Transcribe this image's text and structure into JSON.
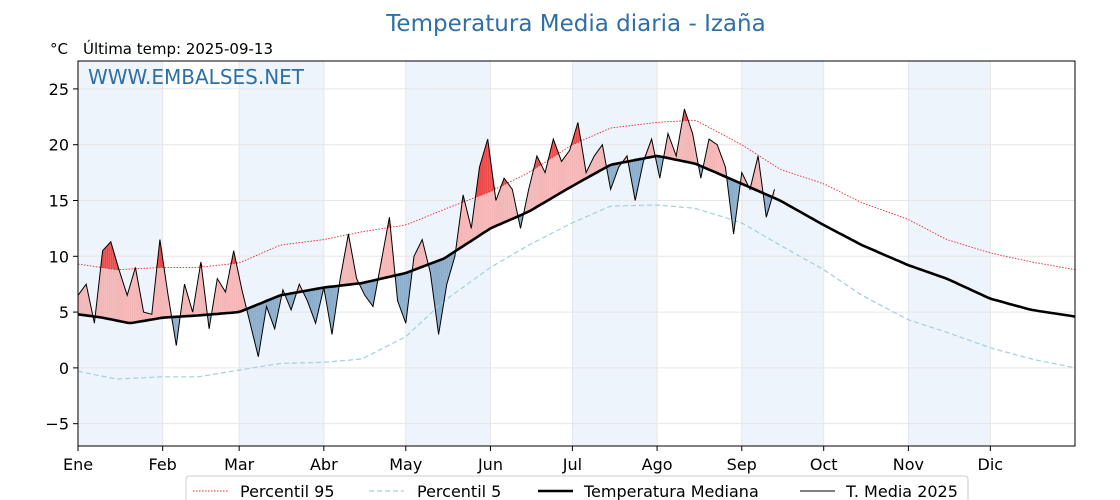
{
  "chart_data": {
    "type": "line",
    "title": "Temperatura Media diaria - Izaña",
    "unit": "°C",
    "last_temp": "Última temp: 2025-09-13",
    "watermark": "WWW.EMBALSES.NET",
    "ylim": [
      -7,
      27.5
    ],
    "xlim": [
      1,
      366
    ],
    "yticks": [
      -5,
      0,
      5,
      10,
      15,
      20,
      25
    ],
    "months": [
      {
        "label": "Ene",
        "day": 1
      },
      {
        "label": "Feb",
        "day": 32
      },
      {
        "label": "Mar",
        "day": 60
      },
      {
        "label": "Abr",
        "day": 91
      },
      {
        "label": "May",
        "day": 121
      },
      {
        "label": "Jun",
        "day": 152
      },
      {
        "label": "Jul",
        "day": 182
      },
      {
        "label": "Ago",
        "day": 213
      },
      {
        "label": "Sep",
        "day": 244
      },
      {
        "label": "Oct",
        "day": 274
      },
      {
        "label": "Nov",
        "day": 305
      },
      {
        "label": "Dic",
        "day": 335
      }
    ],
    "grid": true,
    "legend_position": "bottom",
    "colors": {
      "p95": "#e8262a",
      "p5": "#9fd0e0",
      "median": "#000000",
      "media2025": "#000000",
      "above_fill": "#f4b6b6",
      "above_p95_fill": "#ea4a4a",
      "below_fill": "#8aadcb",
      "band": "#eef4fb",
      "title": "#2e6fa5"
    },
    "series": [
      {
        "name": "Percentil 95",
        "style": "dotted",
        "x": [
          1,
          15,
          32,
          45,
          60,
          75,
          91,
          105,
          121,
          135,
          152,
          166,
          182,
          196,
          213,
          227,
          244,
          258,
          274,
          288,
          305,
          319,
          335,
          350,
          366
        ],
        "y": [
          9.3,
          8.8,
          9.0,
          9.0,
          9.4,
          11.0,
          11.5,
          12.2,
          12.8,
          14.2,
          15.8,
          17.5,
          20.0,
          21.5,
          22.0,
          22.2,
          20.0,
          17.8,
          16.5,
          14.8,
          13.3,
          11.5,
          10.3,
          9.5,
          8.8
        ]
      },
      {
        "name": "Percentil 5",
        "style": "dashed",
        "x": [
          1,
          15,
          32,
          45,
          60,
          75,
          91,
          105,
          121,
          135,
          152,
          166,
          182,
          196,
          213,
          227,
          244,
          258,
          274,
          288,
          305,
          319,
          335,
          350,
          366
        ],
        "y": [
          -0.3,
          -1.0,
          -0.8,
          -0.8,
          -0.2,
          0.4,
          0.5,
          0.8,
          2.8,
          6.0,
          9.0,
          11.0,
          13.0,
          14.5,
          14.6,
          14.3,
          13.0,
          11.0,
          8.8,
          6.5,
          4.3,
          3.2,
          1.8,
          0.8,
          0.0
        ]
      },
      {
        "name": "Temperatura Mediana",
        "style": "thick",
        "x": [
          1,
          10,
          20,
          32,
          45,
          60,
          75,
          91,
          105,
          121,
          135,
          152,
          166,
          182,
          196,
          213,
          227,
          244,
          258,
          274,
          288,
          305,
          319,
          335,
          350,
          366
        ],
        "y": [
          4.8,
          4.5,
          4.0,
          4.5,
          4.7,
          5.0,
          6.5,
          7.2,
          7.6,
          8.5,
          9.8,
          12.5,
          14.0,
          16.3,
          18.2,
          19.0,
          18.3,
          16.5,
          15.0,
          12.8,
          11.0,
          9.2,
          8.0,
          6.2,
          5.2,
          4.6
        ]
      },
      {
        "name": "T. Media 2025",
        "style": "thin",
        "x": [
          1,
          4,
          7,
          10,
          13,
          16,
          19,
          22,
          25,
          28,
          31,
          34,
          37,
          40,
          43,
          46,
          49,
          52,
          55,
          58,
          61,
          64,
          67,
          70,
          73,
          76,
          79,
          82,
          85,
          88,
          91,
          94,
          97,
          100,
          103,
          106,
          109,
          112,
          115,
          118,
          121,
          124,
          127,
          130,
          133,
          136,
          139,
          142,
          145,
          148,
          151,
          154,
          157,
          160,
          163,
          166,
          169,
          172,
          175,
          178,
          181,
          184,
          187,
          190,
          193,
          196,
          199,
          202,
          205,
          208,
          211,
          214,
          217,
          220,
          223,
          226,
          229,
          232,
          235,
          238,
          241,
          244,
          247,
          250,
          253,
          256
        ],
        "y": [
          6.5,
          7.5,
          4.0,
          10.5,
          11.3,
          8.8,
          6.5,
          9.0,
          5.0,
          4.8,
          11.5,
          6.5,
          2.0,
          7.5,
          5.0,
          9.5,
          3.5,
          8.0,
          6.8,
          10.5,
          7.0,
          4.0,
          1.0,
          5.5,
          3.5,
          7.0,
          5.2,
          7.5,
          6.0,
          4.0,
          7.2,
          3.0,
          8.0,
          12.0,
          8.0,
          6.5,
          5.5,
          9.5,
          13.5,
          6.0,
          4.0,
          10.0,
          11.5,
          8.5,
          3.0,
          7.5,
          10.0,
          15.5,
          12.5,
          18.0,
          20.5,
          15.0,
          17.0,
          16.0,
          12.5,
          16.0,
          19.0,
          17.5,
          20.5,
          18.5,
          19.5,
          22.0,
          17.5,
          19.0,
          20.0,
          16.0,
          18.0,
          19.0,
          15.0,
          18.5,
          20.5,
          17.0,
          21.0,
          19.0,
          23.2,
          21.0,
          17.0,
          20.5,
          20.0,
          18.0,
          12.0,
          17.5,
          16.0,
          19.0,
          13.5,
          16.0
        ]
      }
    ]
  }
}
